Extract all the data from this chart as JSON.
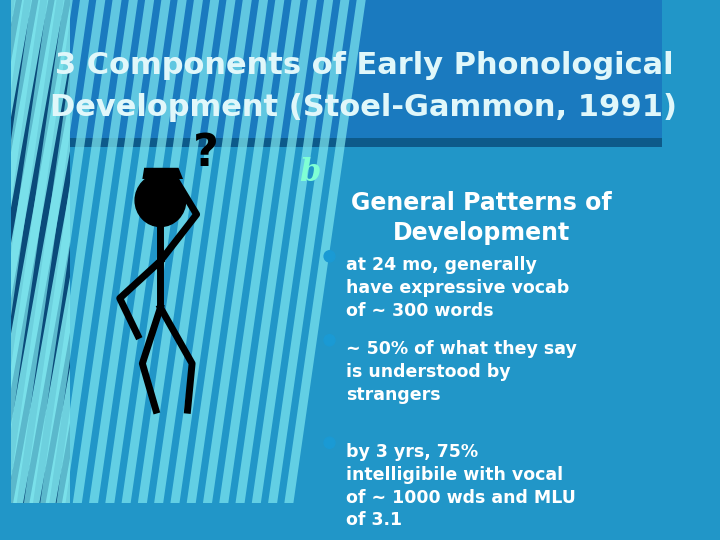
{
  "title_line1": "3 Components of Early Phonological",
  "title_line2": "Development (Stoel-Gammon, 1991)",
  "title_bg_color": "#1a7abf",
  "title_text_color": "#e0f7fa",
  "body_bg_color": "#2196c8",
  "header_bar_color": "#0d5a8a",
  "stripe_color_light": "#7fe8f0",
  "stripe_color_dark": "#0a4a7a",
  "bullet_label": "b",
  "bullet_label_color": "#7fffd4",
  "section_title": "General Patterns of\nDevelopment",
  "section_title_color": "#ffffff",
  "bullet_color": "#1a9ad4",
  "bullets": [
    "at 24 mo, generally\nhave expressive vocab\nof ~ 300 words",
    "~ 50% of what they say\nis understood by\nstrangers",
    "by 3 yrs, 75%\nintelligibile with vocal\nof ~ 1000 wds and MLU\nof 3.1"
  ],
  "bullet_text_color": "#ffffff",
  "fig_width": 7.2,
  "fig_height": 5.4,
  "dpi": 100
}
